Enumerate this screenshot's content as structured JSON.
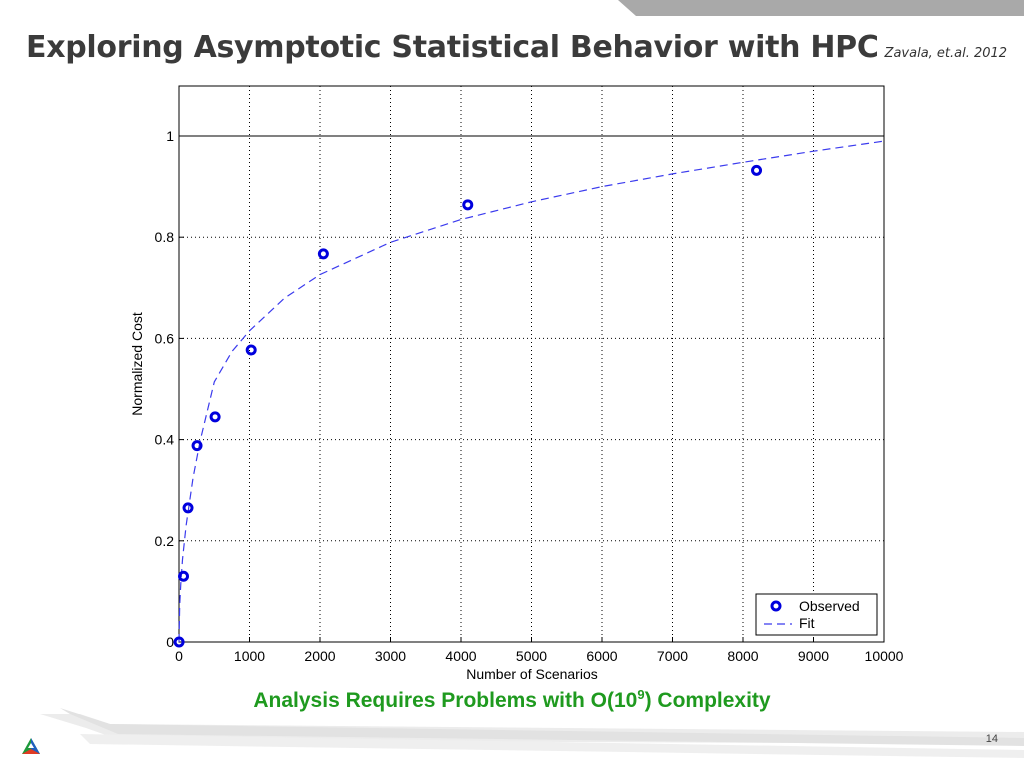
{
  "slide": {
    "title": "Exploring Asymptotic Statistical Behavior with HPC",
    "citation": "Zavala, et.al. 2012",
    "caption_before": "Analysis Requires Problems with O(10",
    "caption_exp": "9",
    "caption_after": ") Complexity",
    "page_number": "14"
  },
  "colors": {
    "marker": "#0000dd",
    "fit_line": "#3b3bee",
    "caption": "#1f9a1f",
    "header_band": "#a9a9a9"
  },
  "chart_data": {
    "type": "scatter",
    "title": "",
    "xlabel": "Number of Scenarios",
    "ylabel": "Normalized Cost",
    "xlim": [
      0,
      10000
    ],
    "ylim": [
      0,
      1.0
    ],
    "grid": true,
    "x_ticks": [
      "0",
      "1000",
      "2000",
      "3000",
      "4000",
      "5000",
      "6000",
      "7000",
      "8000",
      "9000",
      "10000"
    ],
    "y_ticks": [
      "0",
      "0.2",
      "0.4",
      "0.6",
      "0.8",
      "1"
    ],
    "legend_position": "bottom-right",
    "reference_line_y": 1,
    "series": [
      {
        "name": "Observed",
        "style": "circle-markers",
        "x": [
          1,
          64,
          128,
          256,
          512,
          1024,
          2048,
          4096,
          8192
        ],
        "y": [
          0.0,
          0.13,
          0.265,
          0.388,
          0.445,
          0.577,
          0.767,
          0.864,
          0.932
        ]
      },
      {
        "name": "Fit",
        "style": "dashed-line",
        "x": [
          0,
          10,
          25,
          50,
          100,
          200,
          300,
          500,
          750,
          1000,
          1500,
          2000,
          3000,
          4000,
          5000,
          6000,
          7000,
          8000,
          9000,
          10000
        ],
        "y": [
          0.0,
          0.073,
          0.115,
          0.163,
          0.23,
          0.325,
          0.398,
          0.514,
          0.574,
          0.615,
          0.68,
          0.726,
          0.79,
          0.835,
          0.87,
          0.9,
          0.925,
          0.948,
          0.97,
          0.99
        ]
      }
    ]
  }
}
